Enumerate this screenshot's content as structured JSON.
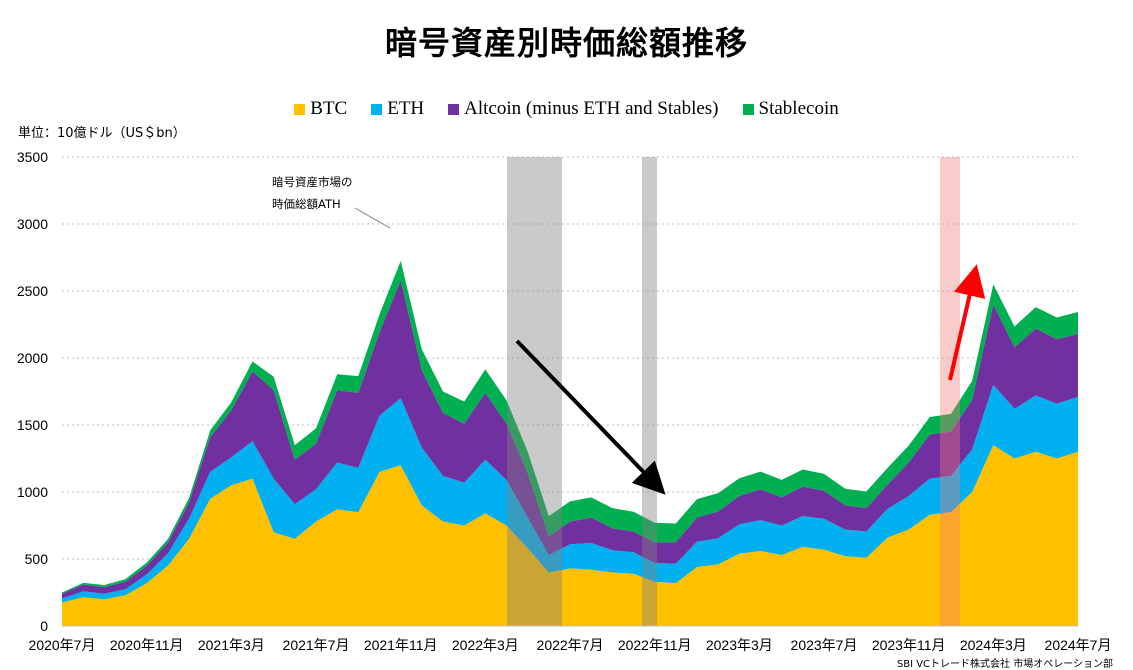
{
  "page": {
    "title": "暗号資産別時価総額推移",
    "unit_label": "単位：10億ドル（US＄bn）",
    "credit": "SBI VCトレード株式会社 市場オペレーション部",
    "annotation_line1": "暗号資産市場の",
    "annotation_line2": "時価総額ATH"
  },
  "legend": [
    {
      "label": "BTC",
      "color": "#FFC000"
    },
    {
      "label": "ETH",
      "color": "#00B0F0"
    },
    {
      "label": "Altcoin (minus ETH and Stables)",
      "color": "#7030A0"
    },
    {
      "label": "Stablecoin",
      "color": "#00B050"
    }
  ],
  "chart_data": {
    "type": "area",
    "title": "暗号資産別時価総額推移",
    "ylabel": "単位：10億ドル（US＄bn）",
    "stacked": true,
    "grid": true,
    "legend_position": "top",
    "ylim": [
      0,
      3500
    ],
    "yticks": [
      "0",
      "500",
      "1000",
      "1500",
      "2000",
      "2500",
      "3000",
      "3500"
    ],
    "x_tick_labels": [
      "2020年7月",
      "2020年11月",
      "2021年3月",
      "2021年7月",
      "2021年11月",
      "2022年3月",
      "2022年7月",
      "2022年11月",
      "2023年3月",
      "2023年7月",
      "2023年11月",
      "2024年3月",
      "2024年7月"
    ],
    "x": [
      "2020-07",
      "2020-08",
      "2020-09",
      "2020-10",
      "2020-11",
      "2020-12",
      "2021-01",
      "2021-02",
      "2021-03",
      "2021-04",
      "2021-05",
      "2021-06",
      "2021-07",
      "2021-08",
      "2021-09",
      "2021-10",
      "2021-11",
      "2021-12",
      "2022-01",
      "2022-02",
      "2022-03",
      "2022-04",
      "2022-05",
      "2022-06",
      "2022-07",
      "2022-08",
      "2022-09",
      "2022-10",
      "2022-11",
      "2022-12",
      "2023-01",
      "2023-02",
      "2023-03",
      "2023-04",
      "2023-05",
      "2023-06",
      "2023-07",
      "2023-08",
      "2023-09",
      "2023-10",
      "2023-11",
      "2023-12",
      "2024-01",
      "2024-02",
      "2024-03",
      "2024-04",
      "2024-05",
      "2024-06",
      "2024-07"
    ],
    "series": [
      {
        "name": "BTC",
        "color": "#FFC000",
        "values": [
          175,
          215,
          200,
          230,
          320,
          450,
          650,
          950,
          1050,
          1100,
          700,
          650,
          780,
          870,
          850,
          1150,
          1200,
          900,
          780,
          750,
          840,
          750,
          580,
          400,
          430,
          420,
          400,
          390,
          330,
          320,
          440,
          460,
          540,
          560,
          530,
          590,
          570,
          520,
          510,
          660,
          720,
          830,
          850,
          1000,
          1350,
          1250,
          1300,
          1250,
          1300
        ]
      },
      {
        "name": "ETH",
        "color": "#00B0F0",
        "values": [
          30,
          45,
          40,
          45,
          65,
          90,
          150,
          200,
          210,
          280,
          400,
          260,
          240,
          350,
          330,
          420,
          500,
          430,
          340,
          320,
          400,
          340,
          230,
          130,
          180,
          200,
          165,
          160,
          140,
          145,
          190,
          195,
          220,
          230,
          220,
          230,
          230,
          200,
          195,
          215,
          250,
          270,
          270,
          320,
          450,
          370,
          420,
          410,
          410
        ]
      },
      {
        "name": "Altcoin (minus ETH and Stables)",
        "color": "#7030A0",
        "values": [
          35,
          50,
          50,
          55,
          65,
          80,
          120,
          260,
          350,
          520,
          660,
          330,
          340,
          540,
          560,
          620,
          880,
          580,
          470,
          440,
          500,
          420,
          330,
          140,
          170,
          190,
          165,
          155,
          155,
          160,
          180,
          200,
          210,
          230,
          210,
          220,
          210,
          180,
          175,
          180,
          250,
          330,
          330,
          370,
          600,
          460,
          500,
          480,
          470
        ]
      },
      {
        "name": "Stablecoin",
        "color": "#00B050",
        "values": [
          10,
          12,
          16,
          20,
          23,
          28,
          35,
          50,
          60,
          75,
          100,
          110,
          115,
          118,
          125,
          135,
          145,
          155,
          160,
          165,
          175,
          175,
          160,
          150,
          150,
          150,
          150,
          148,
          145,
          140,
          137,
          137,
          132,
          132,
          130,
          128,
          125,
          124,
          124,
          124,
          126,
          130,
          133,
          140,
          150,
          155,
          160,
          162,
          163
        ]
      }
    ]
  }
}
